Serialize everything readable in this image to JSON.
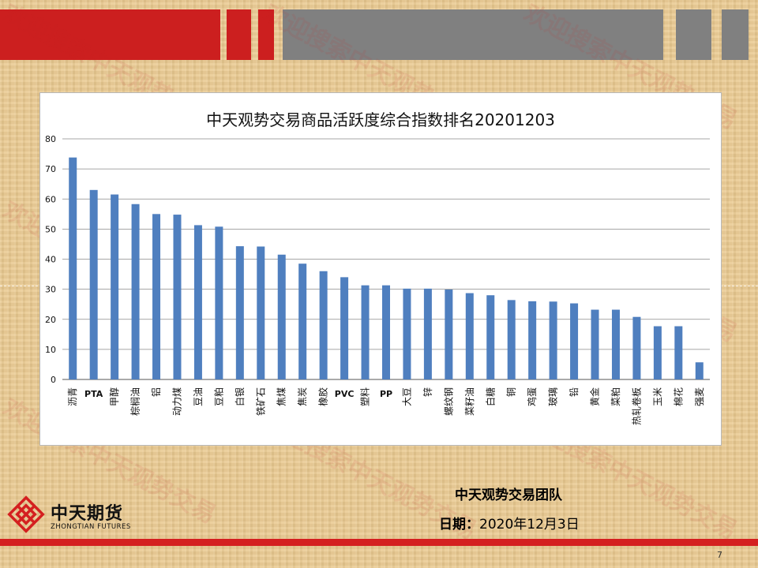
{
  "chart_data": {
    "type": "bar",
    "title": "中天观势交易商品活跃度综合指数排名20201203",
    "categories": [
      "沥青",
      "PTA",
      "甲醇",
      "棕榈油",
      "铝",
      "动力煤",
      "豆油",
      "豆粕",
      "白银",
      "铁矿石",
      "焦煤",
      "焦炭",
      "橡胶",
      "PVC",
      "塑料",
      "PP",
      "大豆",
      "锌",
      "螺纹钢",
      "菜籽油",
      "白糖",
      "铜",
      "鸡蛋",
      "玻璃",
      "铅",
      "黄金",
      "菜粕",
      "热轧卷板",
      "玉米",
      "棉花",
      "强麦"
    ],
    "values": [
      73.8,
      63,
      61.5,
      58.3,
      55,
      54.8,
      51.3,
      50.8,
      44.3,
      44.2,
      41.5,
      38.5,
      36,
      34,
      31.3,
      31.3,
      30.2,
      30.2,
      29.9,
      28.7,
      28,
      26.4,
      26,
      25.9,
      25.3,
      23.2,
      23.2,
      20.8,
      17.7,
      17.7,
      5.7
    ],
    "ylim": [
      0,
      80
    ],
    "yticks": [
      0,
      10,
      20,
      30,
      40,
      50,
      60,
      70,
      80
    ],
    "bar_color": "#4f7fbf",
    "grid": true
  },
  "footer": {
    "team": "中天观势交易团队",
    "date_label": "日期：",
    "date_value": "2020年12月3日",
    "page_number": "7"
  },
  "logo": {
    "name_cn": "中天期货",
    "name_en": "ZHONGTIAN FUTURES"
  },
  "watermark_text": "欢迎搜索中天观势交易",
  "colors": {
    "brand_red": "#d42020",
    "header_gray": "#808080",
    "background": "#e9c98f"
  }
}
